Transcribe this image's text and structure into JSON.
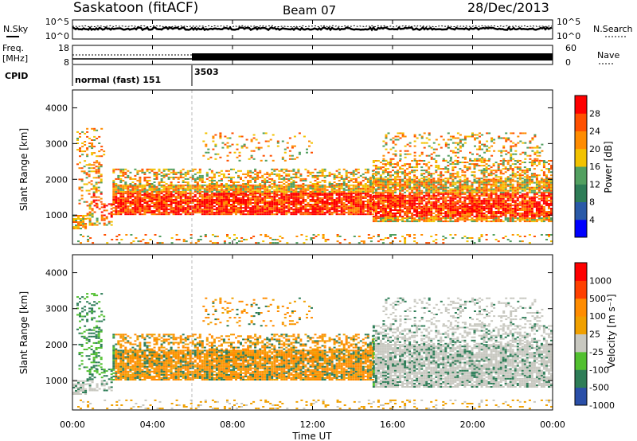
{
  "header": {
    "title": "Saskatoon (fitACF)",
    "beam": "Beam 07",
    "date": "28/Dec/2013"
  },
  "chart_data": [
    {
      "panel": "noise",
      "type": "line",
      "left_labels": [
        "N.Sky"
      ],
      "right_labels": [
        "N.Search"
      ],
      "left_ticks": [
        "10^5",
        "10^0"
      ],
      "right_ticks": [
        "10^5",
        "10^0"
      ],
      "scale": "log"
    },
    {
      "panel": "frequency",
      "type": "line",
      "left_labels": [
        "Freq.",
        "[MHz]"
      ],
      "right_labels": [
        "Nave"
      ],
      "left_ticks": [
        "18",
        "8"
      ],
      "right_ticks": [
        "60",
        "0"
      ]
    },
    {
      "panel": "cpid",
      "type": "table",
      "label": "CPID",
      "segments": [
        {
          "start_h": 0,
          "end_h": 6,
          "label": "normal (fast) 151"
        },
        {
          "start_h": 6,
          "end_h": 24,
          "label": "3503"
        }
      ]
    },
    {
      "panel": "power",
      "type": "heatmap",
      "ylabel": "Slant Range [km]",
      "ylim": [
        180,
        4500
      ],
      "yticks": [
        "1000",
        "2000",
        "3000",
        "4000"
      ],
      "xlim_hours": [
        0,
        24
      ],
      "colorbar_label": "Power [dB]",
      "colorbar_ticks": [
        "28",
        "24",
        "20",
        "16",
        "12",
        "8",
        "4"
      ],
      "colors": [
        "#0000ff",
        "#2a5aa8",
        "#2e7d57",
        "#52a060",
        "#f2c200",
        "#ff8c00",
        "#ff5000",
        "#ff0000"
      ]
    },
    {
      "panel": "velocity",
      "type": "heatmap",
      "ylabel": "Slant Range [km]",
      "ylim": [
        180,
        4500
      ],
      "yticks": [
        "1000",
        "2000",
        "3000",
        "4000"
      ],
      "xlim_hours": [
        0,
        24
      ],
      "colorbar_label": "Velocity [m s⁻¹]",
      "colorbar_ticks": [
        "1000",
        "500",
        "100",
        "25",
        "-25",
        "-100",
        "-500",
        "-1000"
      ],
      "colors": [
        "#2a4fa8",
        "#2e7d57",
        "#52c030",
        "#c8c8c0",
        "#f0a000",
        "#ff8c00",
        "#ff4000",
        "#ff0000"
      ]
    }
  ],
  "x_axis": {
    "label": "Time UT",
    "ticks": [
      "00:00",
      "04:00",
      "08:00",
      "12:00",
      "16:00",
      "20:00",
      "00:00"
    ]
  }
}
